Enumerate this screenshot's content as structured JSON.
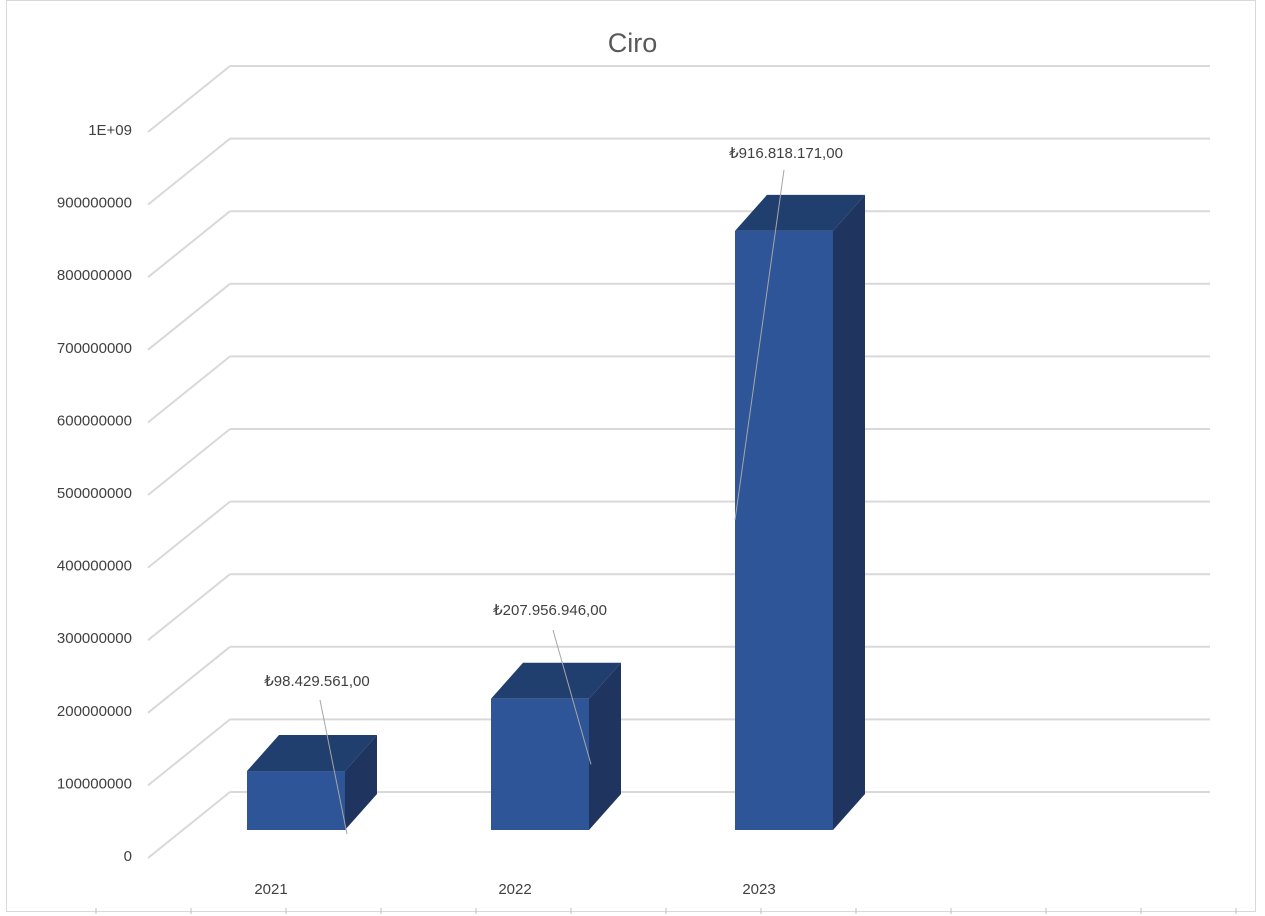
{
  "chart_data": {
    "type": "bar",
    "style": "3d-column",
    "title": "Ciro",
    "categories": [
      "2021",
      "2022",
      "2023"
    ],
    "values": [
      98429561,
      207956946,
      916818171
    ],
    "data_labels": [
      "₺98.429.561,00",
      "₺207.956.946,00",
      "₺916.818.171,00"
    ],
    "ylim": [
      0,
      1100000000
    ],
    "y_ticks": [
      "0",
      "100000000",
      "200000000",
      "300000000",
      "400000000",
      "500000000",
      "600000000",
      "700000000",
      "800000000",
      "900000000",
      "1E+09"
    ],
    "xlabel": "",
    "ylabel": "",
    "grid": true,
    "legend": "none",
    "colors": {
      "bar_front": "#2e5597",
      "bar_side": "#1f355f",
      "bar_top": "#203e6e",
      "grid": "#d9d9d9",
      "text": "#404040"
    }
  }
}
